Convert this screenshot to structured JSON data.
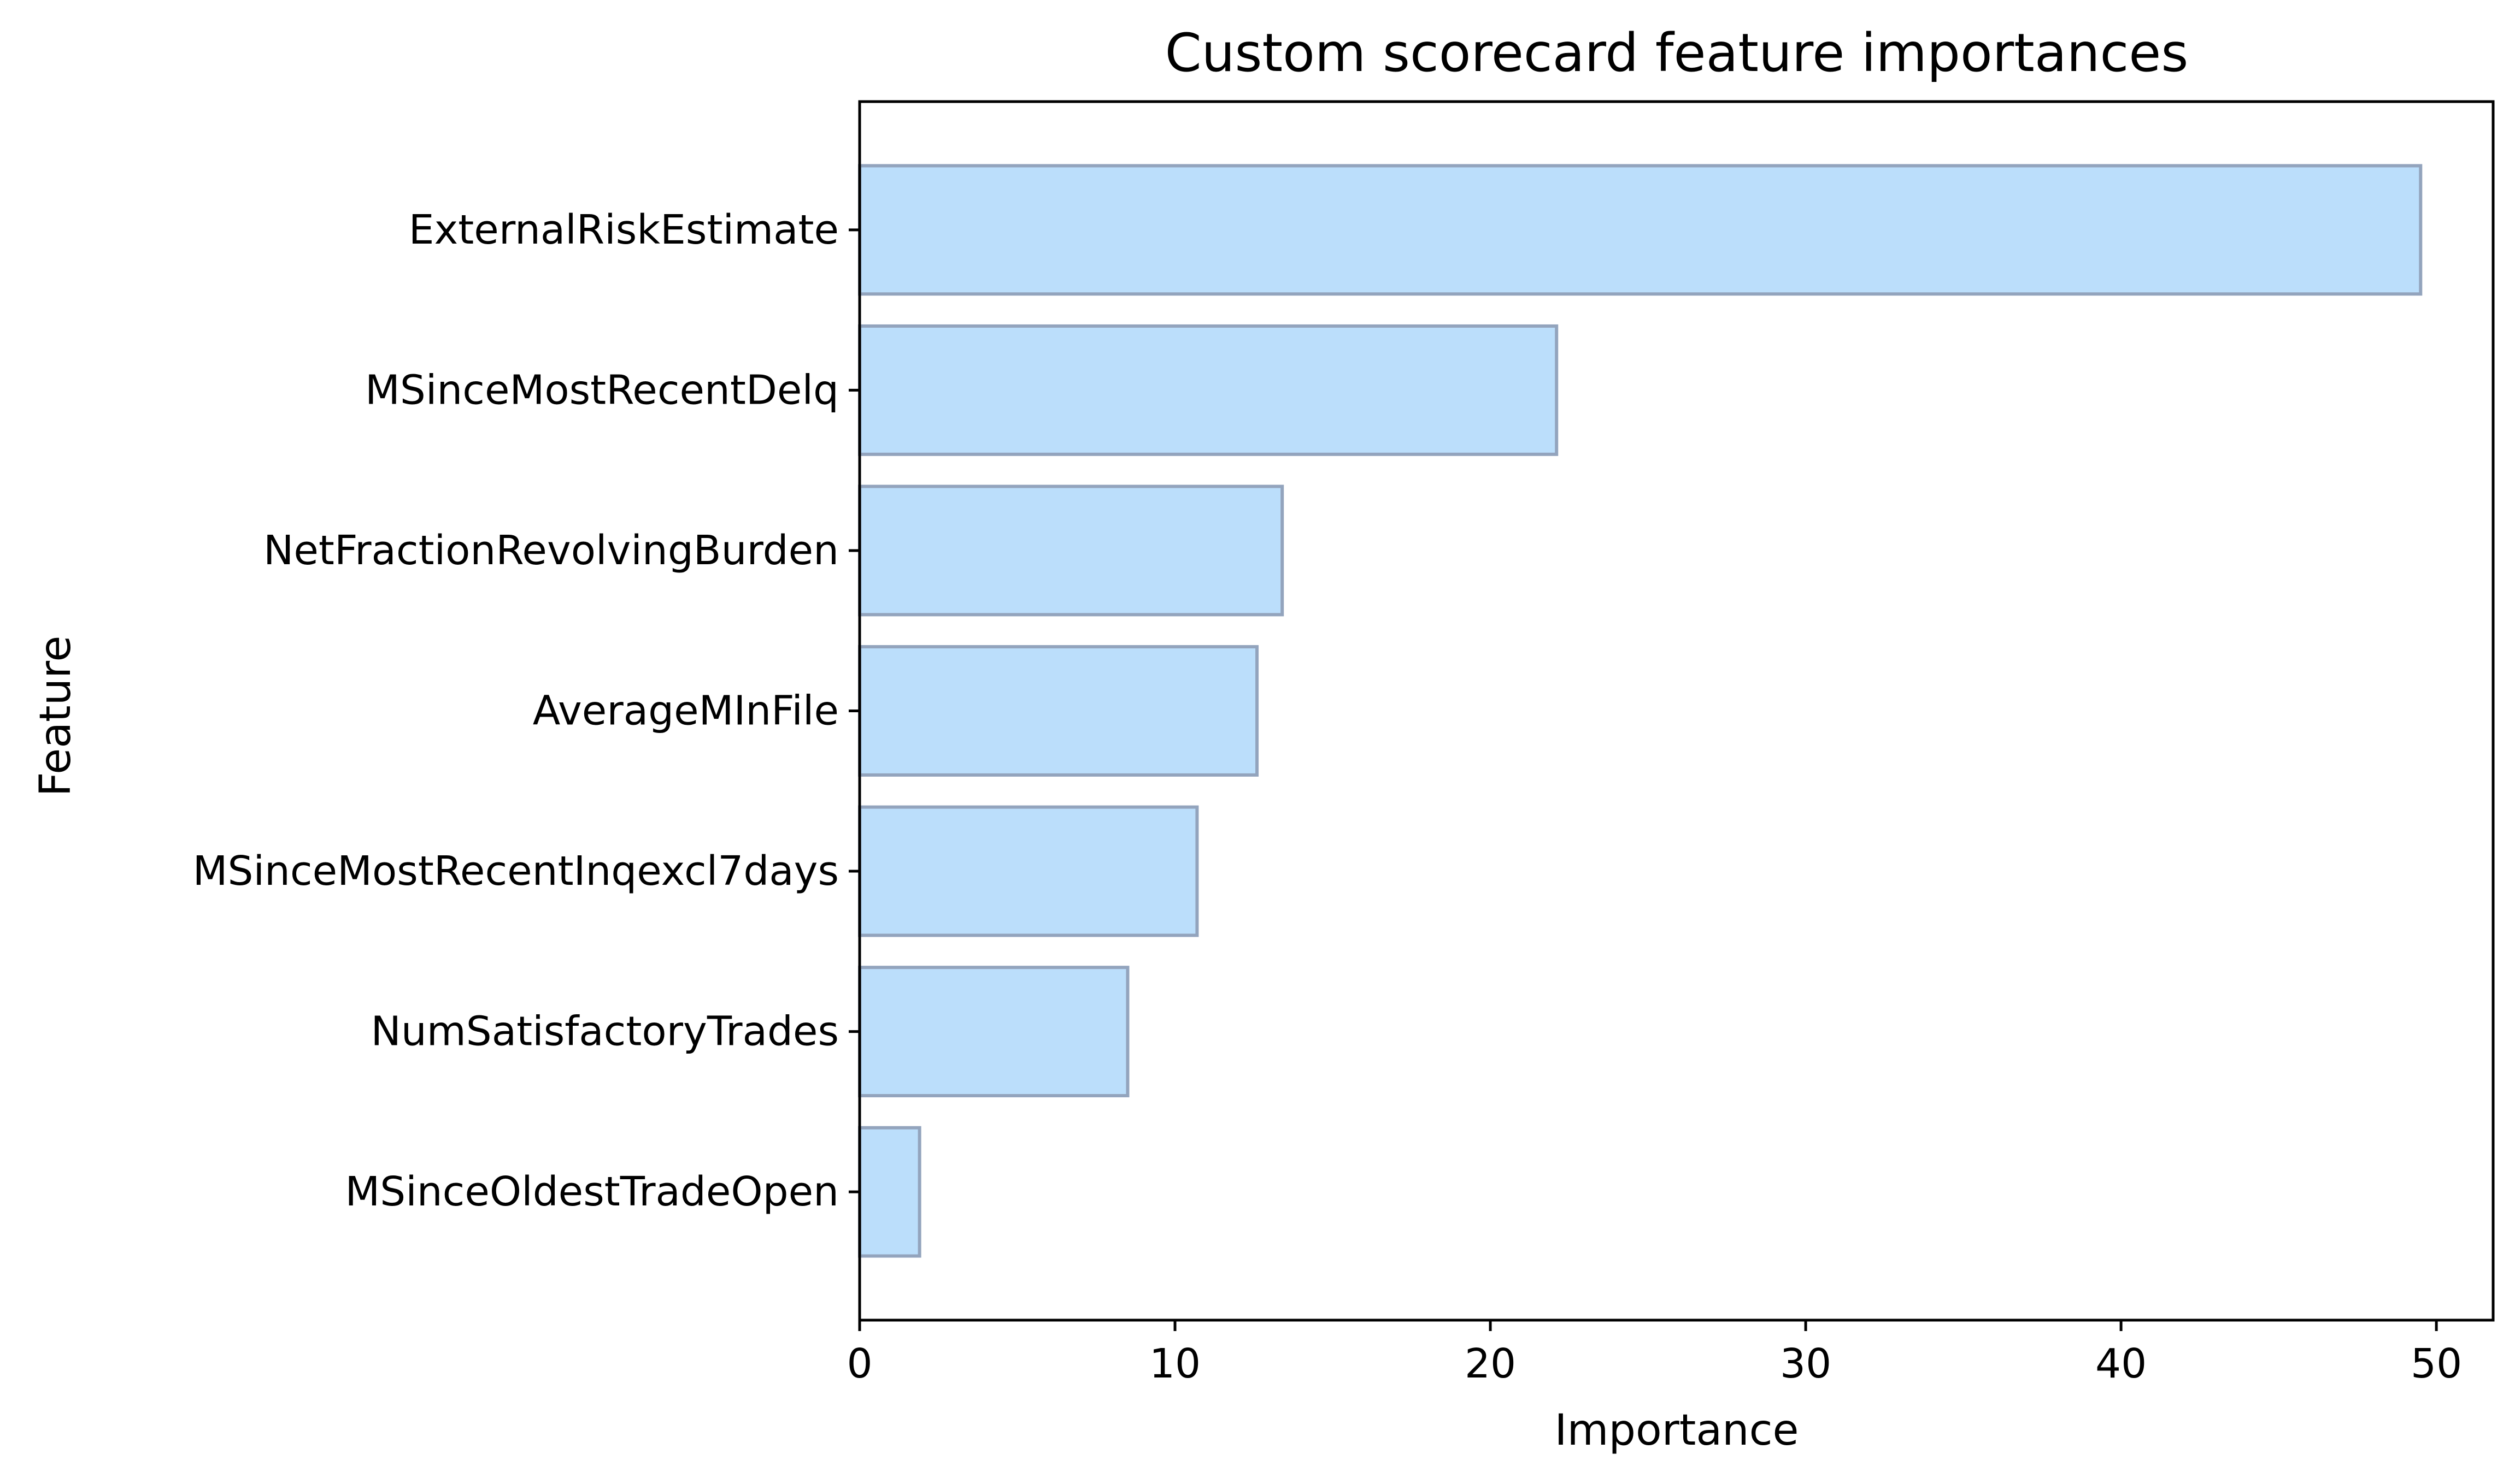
{
  "chart_data": {
    "type": "bar",
    "orientation": "horizontal",
    "title": "Custom scorecard feature importances",
    "xlabel": "Importance",
    "ylabel": "Feature",
    "xlim": [
      0,
      51.8
    ],
    "xticks": [
      0,
      10,
      20,
      30,
      40,
      50
    ],
    "grid": false,
    "categories": [
      "ExternalRiskEstimate",
      "MSinceMostRecentDelq",
      "NetFractionRevolvingBurden",
      "AverageMInFile",
      "MSinceMostRecentInqexcl7days",
      "NumSatisfactoryTrades",
      "MSinceOldestTradeOpen"
    ],
    "values": [
      49.5,
      22.1,
      13.4,
      12.6,
      10.7,
      8.5,
      1.9
    ],
    "bar_color": "#bbdefb",
    "bar_edge_color": "#93a4bd"
  }
}
